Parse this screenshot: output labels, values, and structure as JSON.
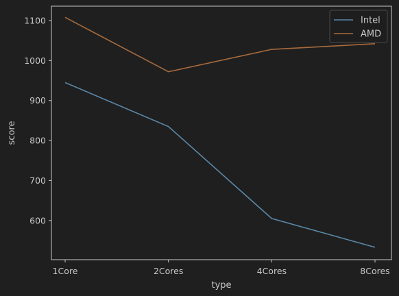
{
  "chart_data": {
    "type": "line",
    "title": "",
    "xlabel": "type",
    "ylabel": "score",
    "categories": [
      "1Core",
      "2Cores",
      "4Cores",
      "8Cores"
    ],
    "ylim": [
      502,
      1136
    ],
    "yticks": [
      600,
      700,
      800,
      900,
      1000,
      1100
    ],
    "grid": false,
    "legend": "top-right",
    "series": [
      {
        "name": "Intel",
        "color": "#5b88a8",
        "values": [
          945,
          835,
          605,
          533
        ]
      },
      {
        "name": "AMD",
        "color": "#a86b3e",
        "values": [
          1108,
          972,
          1028,
          1042
        ]
      }
    ]
  }
}
